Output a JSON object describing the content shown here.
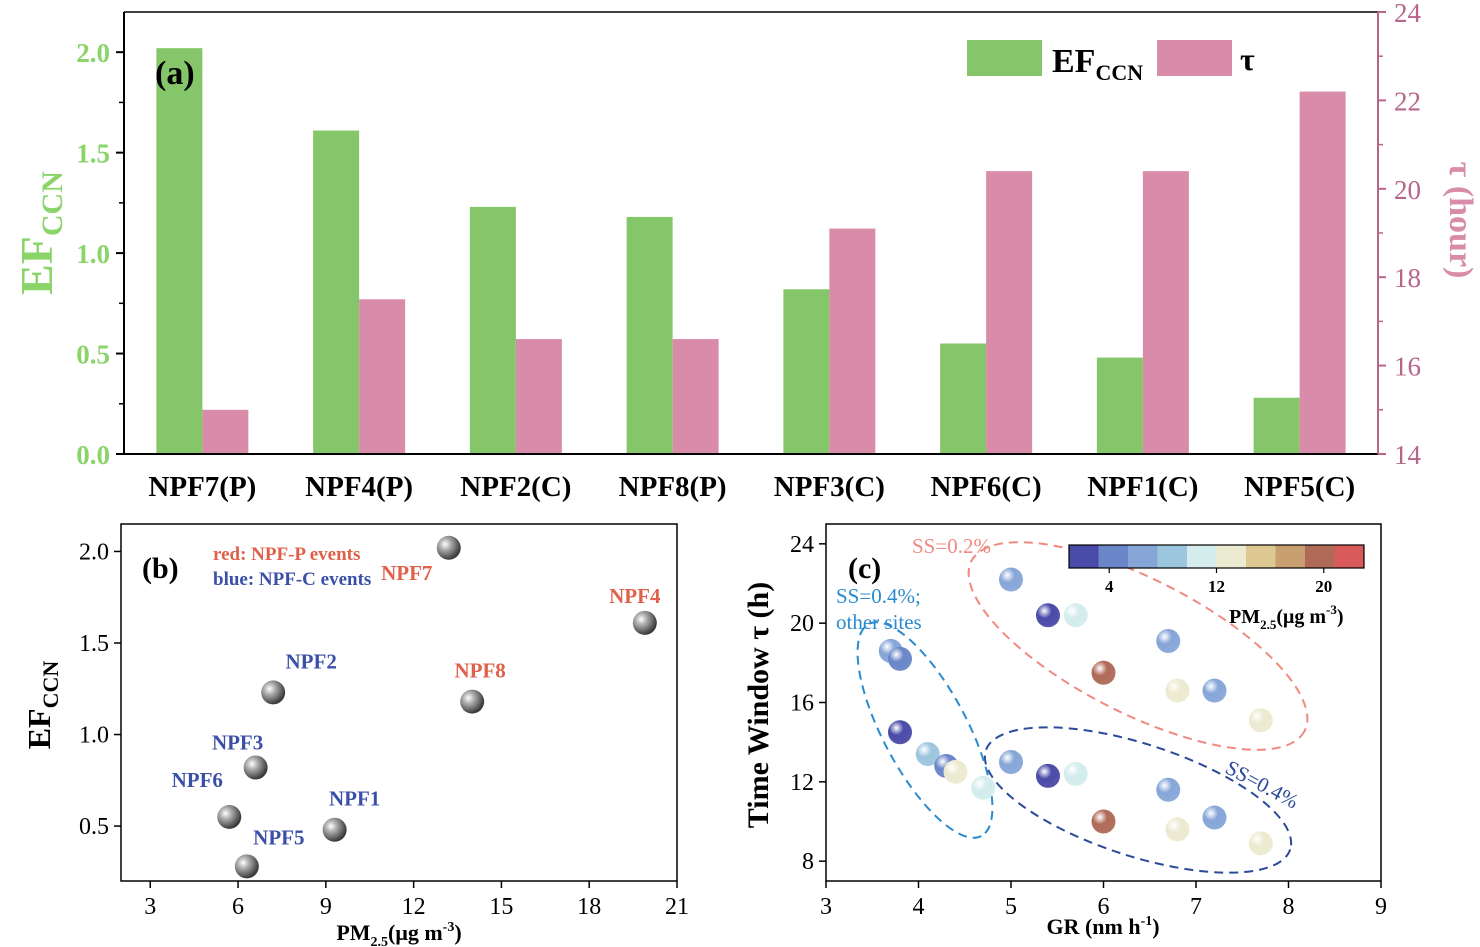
{
  "colors": {
    "green": "#86c66a",
    "green_text": "#8ad46a",
    "pink": "#d98ca9",
    "pink_axis": "#b8658a",
    "red_text": "#e0604a",
    "blue_text": "#3a4fa8",
    "ellipse_red": "#f08a80",
    "ellipse_blue": "#2a8ad0",
    "ellipse_navy": "#2c4a9a",
    "sphere": "#7a7a7a"
  },
  "chart_data": [
    {
      "id": "a",
      "type": "bar",
      "panel_label": "(a)",
      "categories": [
        "NPF7(P)",
        "NPF4(P)",
        "NPF2(C)",
        "NPF8(P)",
        "NPF3(C)",
        "NPF6(C)",
        "NPF1(C)",
        "NPF5(C)"
      ],
      "series": [
        {
          "name": "EF_CCN",
          "axis": "left",
          "values": [
            2.02,
            1.61,
            1.23,
            1.18,
            0.82,
            0.55,
            0.48,
            0.28
          ]
        },
        {
          "name": "τ",
          "axis": "right",
          "values": [
            15.0,
            17.5,
            16.6,
            16.6,
            19.1,
            20.4,
            20.4,
            22.2
          ]
        }
      ],
      "legend": [
        {
          "main": "EF",
          "sub": "CCN"
        },
        {
          "main": "τ",
          "sub": ""
        }
      ],
      "ylabel_left": {
        "main": "EF",
        "sub": "CCN"
      },
      "ylabel_right": "τ (hour)",
      "ylim_left": [
        0,
        2.2
      ],
      "ylim_right": [
        14,
        24
      ],
      "yticks_left": [
        "0.0",
        "0.5",
        "1.0",
        "1.5",
        "2.0"
      ],
      "yticks_right": [
        "14",
        "16",
        "18",
        "20",
        "22",
        "24"
      ],
      "legend_position": "top-right"
    },
    {
      "id": "b",
      "type": "scatter",
      "panel_label": "(b)",
      "xlabel": {
        "main": "PM",
        "sub": "2.5",
        "tail": "(μg m",
        "sup": "-3",
        "end": ")"
      },
      "ylabel": {
        "main": "EF",
        "sub": "CCN"
      },
      "xlim": [
        2,
        21
      ],
      "ylim": [
        0.2,
        2.15
      ],
      "xticks": [
        "3",
        "6",
        "9",
        "12",
        "15",
        "18",
        "21"
      ],
      "yticks": [
        "0.5",
        "1.0",
        "1.5",
        "2.0"
      ],
      "annotation_lines": [
        {
          "text": "red: NPF-P events",
          "class": "red"
        },
        {
          "text": "blue: NPF-C events",
          "class": "blue"
        }
      ],
      "points": [
        {
          "label": "NPF7",
          "x": 13.2,
          "y": 2.02,
          "group": "red"
        },
        {
          "label": "NPF4",
          "x": 19.9,
          "y": 1.61,
          "group": "red"
        },
        {
          "label": "NPF8",
          "x": 14.0,
          "y": 1.18,
          "group": "red"
        },
        {
          "label": "NPF2",
          "x": 7.2,
          "y": 1.23,
          "group": "blue"
        },
        {
          "label": "NPF3",
          "x": 6.6,
          "y": 0.82,
          "group": "blue"
        },
        {
          "label": "NPF6",
          "x": 5.7,
          "y": 0.55,
          "group": "blue"
        },
        {
          "label": "NPF1",
          "x": 9.3,
          "y": 0.48,
          "group": "blue"
        },
        {
          "label": "NPF5",
          "x": 6.3,
          "y": 0.28,
          "group": "blue"
        }
      ]
    },
    {
      "id": "c",
      "type": "scatter",
      "panel_label": "(c)",
      "xlabel": {
        "main": "GR (nm h",
        "sup": "-1",
        "end": ")"
      },
      "ylabel": "Time Window τ (h)",
      "xlim": [
        3,
        9
      ],
      "ylim": [
        7,
        25
      ],
      "xticks": [
        "3",
        "4",
        "5",
        "6",
        "7",
        "8",
        "9"
      ],
      "yticks": [
        "8",
        "12",
        "16",
        "20",
        "24"
      ],
      "colorbar": {
        "title": {
          "main": "PM",
          "sub": "2.5",
          "tail": "(μg m",
          "sup": "-3",
          "end": ")"
        },
        "range": [
          1,
          23
        ],
        "ticks": [
          "4",
          "12",
          "20"
        ],
        "colors": [
          "#4a4aa8",
          "#6a86c8",
          "#86a6d8",
          "#9cc6de",
          "#d4ecec",
          "#ecead0",
          "#dcc890",
          "#c8a070",
          "#b06a58",
          "#d85a5a"
        ]
      },
      "groups": [
        {
          "text": "SS=0.2%",
          "class": "ellipse_red"
        },
        {
          "text": "SS=0.4%",
          "class": "ellipse_navy"
        },
        {
          "text": "SS=0.4%;",
          "class": "ellipse_blue"
        },
        {
          "text": "other sites",
          "class": "ellipse_blue"
        }
      ],
      "points": [
        {
          "x": 5.0,
          "y": 22.2,
          "pm": 6
        },
        {
          "x": 5.4,
          "y": 20.4,
          "pm": 3
        },
        {
          "x": 5.7,
          "y": 20.4,
          "pm": 10
        },
        {
          "x": 6.0,
          "y": 17.5,
          "pm": 20
        },
        {
          "x": 6.7,
          "y": 19.1,
          "pm": 6
        },
        {
          "x": 6.8,
          "y": 16.6,
          "pm": 14
        },
        {
          "x": 7.2,
          "y": 16.6,
          "pm": 6
        },
        {
          "x": 7.7,
          "y": 15.1,
          "pm": 12
        },
        {
          "x": 5.0,
          "y": 13.0,
          "pm": 6
        },
        {
          "x": 5.4,
          "y": 12.3,
          "pm": 3
        },
        {
          "x": 5.7,
          "y": 12.4,
          "pm": 10
        },
        {
          "x": 6.0,
          "y": 10.0,
          "pm": 20
        },
        {
          "x": 6.7,
          "y": 11.6,
          "pm": 6
        },
        {
          "x": 6.8,
          "y": 9.6,
          "pm": 14
        },
        {
          "x": 7.2,
          "y": 10.2,
          "pm": 6
        },
        {
          "x": 7.7,
          "y": 8.9,
          "pm": 12
        },
        {
          "x": 3.7,
          "y": 18.6,
          "pm": 6
        },
        {
          "x": 3.8,
          "y": 18.2,
          "pm": 5
        },
        {
          "x": 3.8,
          "y": 14.5,
          "pm": 2
        },
        {
          "x": 4.1,
          "y": 13.4,
          "pm": 9
        },
        {
          "x": 4.3,
          "y": 12.8,
          "pm": 5
        },
        {
          "x": 4.4,
          "y": 12.5,
          "pm": 12
        },
        {
          "x": 4.7,
          "y": 11.7,
          "pm": 10
        }
      ]
    }
  ]
}
